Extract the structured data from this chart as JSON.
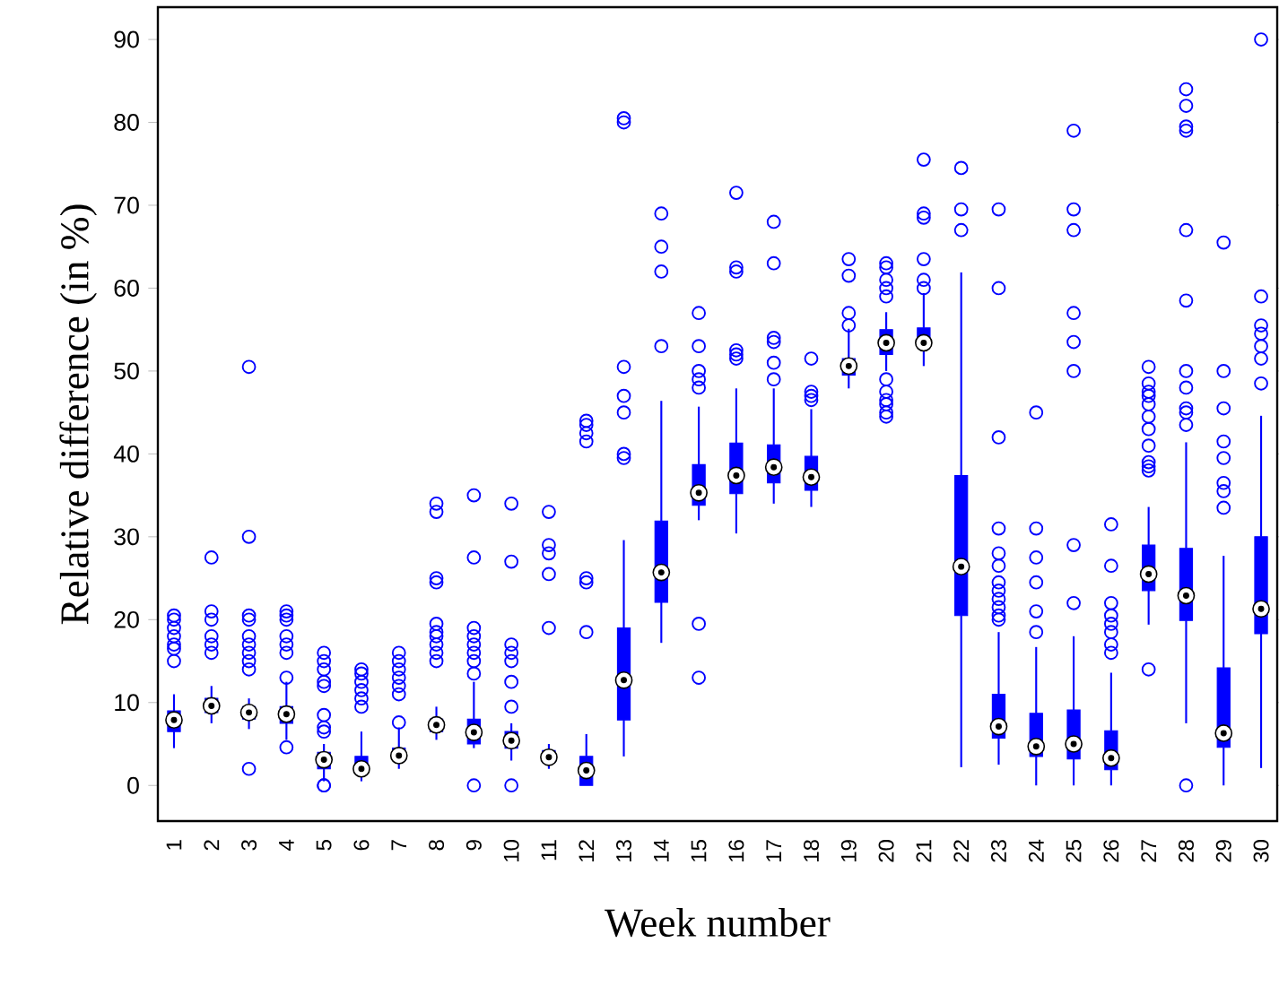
{
  "chart_data": {
    "type": "box",
    "xlabel": "Week number",
    "ylabel": "Relative difference (in %)",
    "categories": [
      "1",
      "2",
      "3",
      "4",
      "5",
      "6",
      "7",
      "8",
      "9",
      "10",
      "11",
      "12",
      "13",
      "14",
      "15",
      "16",
      "17",
      "18",
      "19",
      "20",
      "21",
      "22",
      "23",
      "24",
      "25",
      "26",
      "27",
      "28",
      "29",
      "30"
    ],
    "ylim": [
      -4.3,
      93.9
    ],
    "yticks": [
      0,
      10,
      20,
      30,
      40,
      50,
      60,
      70,
      80,
      90
    ],
    "marker": "circle",
    "grid": false,
    "series": [
      {
        "color": "#0000ff",
        "boxes": [
          {
            "low": 4.5,
            "q1": 6.5,
            "median": 7.9,
            "q3": 9,
            "high": 11,
            "outliers": [
              15,
              16.5,
              17,
              18,
              19,
              20,
              20.5
            ]
          },
          {
            "low": 7.5,
            "q1": 8.8,
            "median": 9.6,
            "q3": 10.5,
            "high": 12,
            "outliers": [
              16,
              17,
              18,
              20,
              21,
              27.5
            ]
          },
          {
            "low": 6.8,
            "q1": 8,
            "median": 8.8,
            "q3": 9.5,
            "high": 10.5,
            "outliers": [
              2,
              14,
              15,
              16,
              17,
              18,
              20,
              20.5,
              30,
              50.5
            ]
          },
          {
            "low": 5.5,
            "q1": 7.5,
            "median": 8.6,
            "q3": 9.5,
            "high": 12.5,
            "outliers": [
              4.6,
              13,
              16,
              17,
              18,
              20,
              20.5,
              21
            ]
          },
          {
            "low": 0.5,
            "q1": 2,
            "median": 3.1,
            "q3": 4,
            "high": 5,
            "outliers": [
              0,
              0,
              6.5,
              7,
              8.5,
              12,
              12.5,
              14,
              15,
              16
            ]
          },
          {
            "low": 0.5,
            "q1": 1.5,
            "median": 2,
            "q3": 3.5,
            "high": 6.5,
            "outliers": [
              9.5,
              10.5,
              11.5,
              12.5,
              13.5,
              14
            ]
          },
          {
            "low": 2,
            "q1": 3,
            "median": 3.6,
            "q3": 4.5,
            "high": 7,
            "outliers": [
              7.6,
              11,
              12,
              13,
              14,
              15,
              16
            ]
          },
          {
            "low": 5.5,
            "q1": 6.5,
            "median": 7.3,
            "q3": 8,
            "high": 9.5,
            "outliers": [
              15,
              16,
              17,
              18,
              18.5,
              19.5,
              24.5,
              25,
              33,
              34
            ]
          },
          {
            "low": 4.5,
            "q1": 5,
            "median": 6.4,
            "q3": 8,
            "high": 12.5,
            "outliers": [
              0,
              13.5,
              15,
              16,
              17,
              18,
              19,
              27.5,
              35
            ]
          },
          {
            "low": 3,
            "q1": 4.5,
            "median": 5.4,
            "q3": 6.5,
            "high": 7.5,
            "outliers": [
              0,
              9.5,
              12.5,
              15,
              16,
              17,
              27,
              34
            ]
          },
          {
            "low": 2,
            "q1": 2.8,
            "median": 3.4,
            "q3": 4.2,
            "high": 5,
            "outliers": [
              19,
              25.5,
              28,
              29,
              33
            ]
          },
          {
            "low": 0,
            "q1": 0,
            "median": 1.8,
            "q3": 3.5,
            "high": 6.2,
            "outliers": [
              18.5,
              24.5,
              25,
              41.5,
              42.5,
              43.5,
              44
            ]
          },
          {
            "low": 3.5,
            "q1": 7.9,
            "median": 12.7,
            "q3": 19,
            "high": 29.6,
            "outliers": [
              39.5,
              40,
              45,
              47,
              50.5,
              80,
              80.5
            ]
          },
          {
            "low": 17.2,
            "q1": 22.1,
            "median": 25.7,
            "q3": 31.9,
            "high": 46.4,
            "outliers": [
              53,
              62,
              65,
              69
            ]
          },
          {
            "low": 32,
            "q1": 33.8,
            "median": 35.3,
            "q3": 38.7,
            "high": 45.7,
            "outliers": [
              13,
              19.5,
              48,
              49,
              50,
              53,
              57
            ]
          },
          {
            "low": 30.4,
            "q1": 35.2,
            "median": 37.4,
            "q3": 41.3,
            "high": 47.9,
            "outliers": [
              51.5,
              52,
              52.5,
              62,
              62.5,
              71.5
            ]
          },
          {
            "low": 34,
            "q1": 36.5,
            "median": 38.4,
            "q3": 41.1,
            "high": 47.9,
            "outliers": [
              49,
              51,
              53.5,
              54,
              63,
              68
            ]
          },
          {
            "low": 33.6,
            "q1": 35.6,
            "median": 37.2,
            "q3": 39.7,
            "high": 45.4,
            "outliers": [
              46.5,
              47,
              47.5,
              51.5
            ]
          },
          {
            "low": 47.9,
            "q1": 49.5,
            "median": 50.6,
            "q3": 51.5,
            "high": 55.1,
            "outliers": [
              55.5,
              57,
              61.5,
              63.5
            ]
          },
          {
            "low": 50,
            "q1": 52,
            "median": 53.4,
            "q3": 55,
            "high": 57.1,
            "outliers": [
              44.5,
              45,
              46,
              46.5,
              47.5,
              49,
              59,
              60,
              61,
              62.5,
              63
            ]
          },
          {
            "low": 50.6,
            "q1": 52.9,
            "median": 53.4,
            "q3": 55.2,
            "high": 59.4,
            "outliers": [
              60,
              61,
              63.5,
              68.5,
              69,
              75.5
            ]
          },
          {
            "low": 2.2,
            "q1": 20.5,
            "median": 26.4,
            "q3": 37.4,
            "high": 61.9,
            "outliers": [
              67,
              69.5,
              74.5
            ]
          },
          {
            "low": 2.5,
            "q1": 5.7,
            "median": 7.1,
            "q3": 11,
            "high": 18.5,
            "outliers": [
              20,
              20.5,
              21.5,
              22.5,
              23.5,
              24.5,
              26.5,
              28,
              31,
              42,
              60,
              69.5
            ]
          },
          {
            "low": 0,
            "q1": 3.5,
            "median": 4.7,
            "q3": 8.7,
            "high": 16.7,
            "outliers": [
              18.5,
              21,
              24.5,
              27.5,
              31,
              45
            ]
          },
          {
            "low": 0,
            "q1": 3.2,
            "median": 5,
            "q3": 9.1,
            "high": 18,
            "outliers": [
              22,
              29,
              50,
              53.5,
              57,
              67,
              69.5,
              79
            ]
          },
          {
            "low": 0,
            "q1": 1.9,
            "median": 3.3,
            "q3": 6.6,
            "high": 13.6,
            "outliers": [
              16,
              17,
              18.5,
              19.5,
              20.5,
              22,
              26.5,
              31.5
            ]
          },
          {
            "low": 19.4,
            "q1": 23.5,
            "median": 25.5,
            "q3": 29,
            "high": 33.6,
            "outliers": [
              14,
              38,
              38.5,
              39,
              41,
              43,
              44.5,
              46,
              47,
              47.5,
              48.5,
              50.5
            ]
          },
          {
            "low": 7.5,
            "q1": 19.9,
            "median": 22.9,
            "q3": 28.6,
            "high": 41.4,
            "outliers": [
              0,
              43.5,
              45,
              45.5,
              48,
              50,
              58.5,
              67,
              79,
              79.5,
              82,
              84
            ]
          },
          {
            "low": 0,
            "q1": 4.6,
            "median": 6.3,
            "q3": 14.2,
            "high": 27.7,
            "outliers": [
              33.5,
              35.5,
              36.5,
              39.5,
              41.5,
              45.5,
              50,
              65.5
            ]
          },
          {
            "low": 2.1,
            "q1": 18.3,
            "median": 21.3,
            "q3": 30,
            "high": 44.6,
            "outliers": [
              48.5,
              51.5,
              53,
              54.5,
              55.5,
              59,
              90
            ]
          }
        ]
      }
    ]
  }
}
